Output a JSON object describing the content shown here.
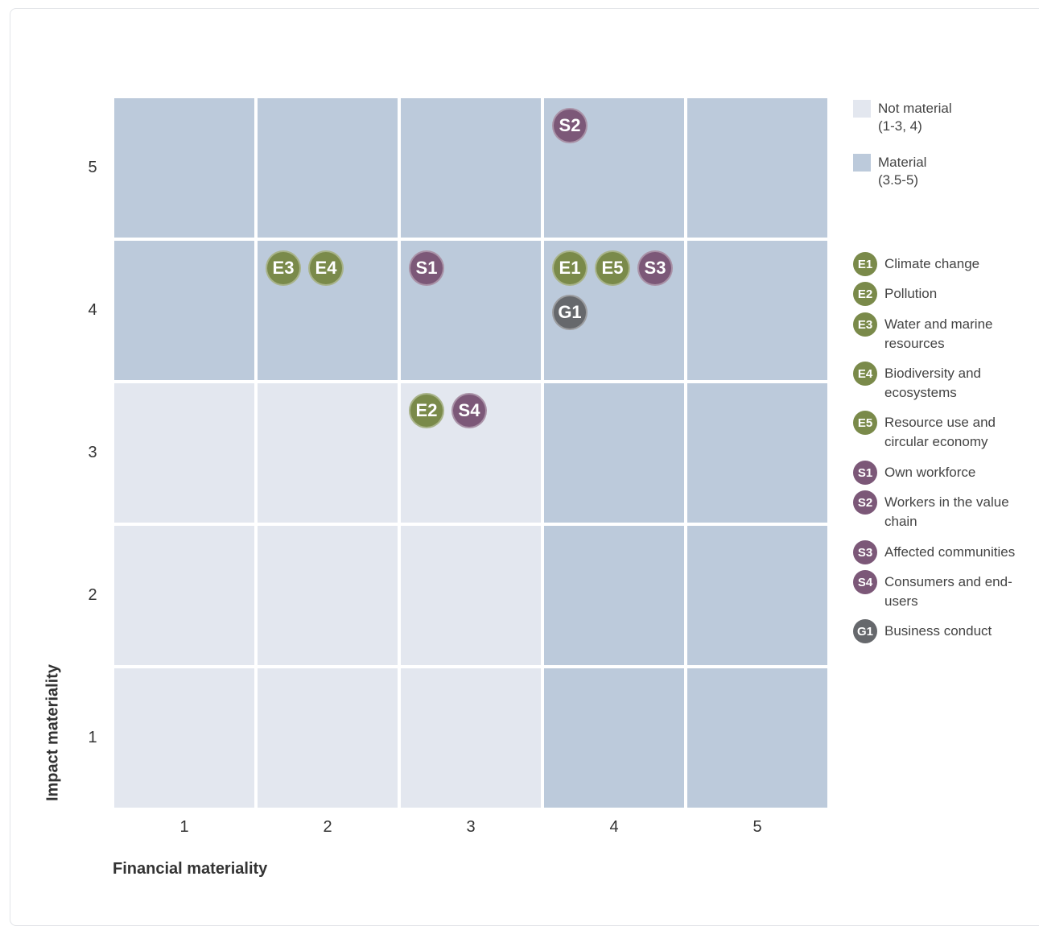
{
  "chart_data": {
    "type": "heatmap",
    "xlabel": "Financial materiality",
    "ylabel": "Impact materiality",
    "x_ticks": [
      "1",
      "2",
      "3",
      "4",
      "5"
    ],
    "y_ticks": [
      "1",
      "2",
      "3",
      "4",
      "5"
    ],
    "colors": {
      "not_material": "#e3e7ef",
      "material": "#bccadb"
    },
    "cells": [
      {
        "x": 1,
        "y": 5,
        "status": "material"
      },
      {
        "x": 2,
        "y": 5,
        "status": "material"
      },
      {
        "x": 3,
        "y": 5,
        "status": "material"
      },
      {
        "x": 4,
        "y": 5,
        "status": "material"
      },
      {
        "x": 5,
        "y": 5,
        "status": "material"
      },
      {
        "x": 1,
        "y": 4,
        "status": "material"
      },
      {
        "x": 2,
        "y": 4,
        "status": "material"
      },
      {
        "x": 3,
        "y": 4,
        "status": "material"
      },
      {
        "x": 4,
        "y": 4,
        "status": "material"
      },
      {
        "x": 5,
        "y": 4,
        "status": "material"
      },
      {
        "x": 1,
        "y": 3,
        "status": "not_material"
      },
      {
        "x": 2,
        "y": 3,
        "status": "not_material"
      },
      {
        "x": 3,
        "y": 3,
        "status": "not_material"
      },
      {
        "x": 4,
        "y": 3,
        "status": "material"
      },
      {
        "x": 5,
        "y": 3,
        "status": "material"
      },
      {
        "x": 1,
        "y": 2,
        "status": "not_material"
      },
      {
        "x": 2,
        "y": 2,
        "status": "not_material"
      },
      {
        "x": 3,
        "y": 2,
        "status": "not_material"
      },
      {
        "x": 4,
        "y": 2,
        "status": "material"
      },
      {
        "x": 5,
        "y": 2,
        "status": "material"
      },
      {
        "x": 1,
        "y": 1,
        "status": "not_material"
      },
      {
        "x": 2,
        "y": 1,
        "status": "not_material"
      },
      {
        "x": 3,
        "y": 1,
        "status": "not_material"
      },
      {
        "x": 4,
        "y": 1,
        "status": "material"
      },
      {
        "x": 5,
        "y": 1,
        "status": "material"
      }
    ],
    "points": [
      {
        "code": "S2",
        "x": 4,
        "y": 5,
        "category": "social"
      },
      {
        "code": "E3",
        "x": 2,
        "y": 4,
        "category": "environment"
      },
      {
        "code": "E4",
        "x": 2,
        "y": 4,
        "category": "environment"
      },
      {
        "code": "S1",
        "x": 3,
        "y": 4,
        "category": "social"
      },
      {
        "code": "E1",
        "x": 4,
        "y": 4,
        "category": "environment"
      },
      {
        "code": "E5",
        "x": 4,
        "y": 4,
        "category": "environment"
      },
      {
        "code": "S3",
        "x": 4,
        "y": 4,
        "category": "social"
      },
      {
        "code": "G1",
        "x": 4,
        "y": 4,
        "category": "governance"
      },
      {
        "code": "E2",
        "x": 3,
        "y": 3,
        "category": "environment"
      },
      {
        "code": "S4",
        "x": 3,
        "y": 3,
        "category": "social"
      }
    ],
    "category_colors": {
      "environment": "#7a8a4a",
      "social": "#7c5878",
      "governance": "#66686c"
    },
    "legend_scale": [
      {
        "key": "not_material",
        "label": "Not material",
        "range": "(1-3, 4)"
      },
      {
        "key": "material",
        "label": "Material",
        "range": "(3.5-5)"
      }
    ],
    "legend_topics": [
      {
        "code": "E1",
        "category": "environment",
        "label": "Climate change"
      },
      {
        "code": "E2",
        "category": "environment",
        "label": "Pollution"
      },
      {
        "code": "E3",
        "category": "environment",
        "label": "Water and marine resources"
      },
      {
        "code": "E4",
        "category": "environment",
        "label": "Biodiversity and ecosystems"
      },
      {
        "code": "E5",
        "category": "environment",
        "label": "Resource use and circular economy"
      },
      {
        "code": "S1",
        "category": "social",
        "label": "Own workforce"
      },
      {
        "code": "S2",
        "category": "social",
        "label": "Workers in the value chain"
      },
      {
        "code": "S3",
        "category": "social",
        "label": "Affected communities"
      },
      {
        "code": "S4",
        "category": "social",
        "label": "Consumers and end-users"
      },
      {
        "code": "G1",
        "category": "governance",
        "label": "Business conduct"
      }
    ]
  }
}
